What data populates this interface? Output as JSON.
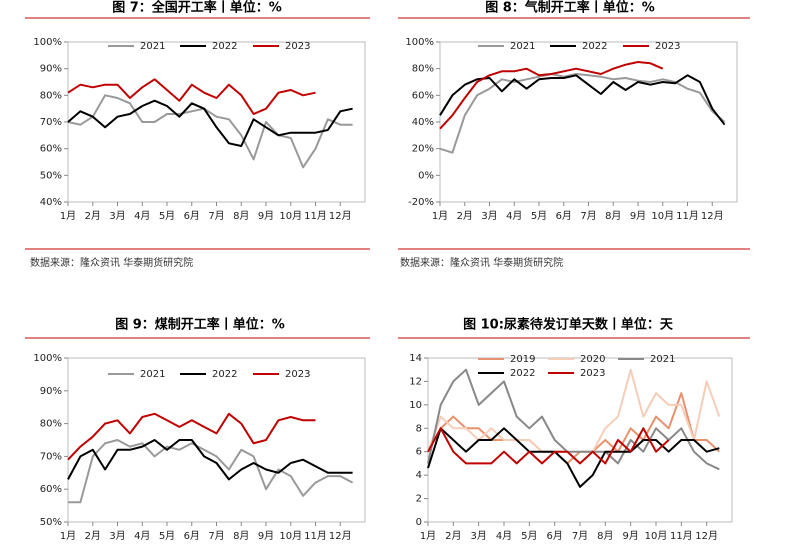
{
  "chart_data": [
    {
      "type": "line",
      "title": "图 7：全国开工率丨单位：%",
      "source": "数据来源：隆众资讯 华泰期货研究院",
      "x": [
        0,
        2,
        4,
        6,
        8,
        10,
        12,
        14,
        16,
        18,
        20,
        22,
        24,
        26,
        28,
        30,
        32,
        34,
        36,
        38,
        40,
        42,
        44,
        46
      ],
      "xlim": [
        0,
        48
      ],
      "xticks": [
        {
          "value": 0,
          "label": "1月"
        },
        {
          "value": 4,
          "label": "2月"
        },
        {
          "value": 8,
          "label": "3月"
        },
        {
          "value": 12,
          "label": "4月"
        },
        {
          "value": 16,
          "label": "5月"
        },
        {
          "value": 20,
          "label": "6月"
        },
        {
          "value": 24,
          "label": "7月"
        },
        {
          "value": 28,
          "label": "8月"
        },
        {
          "value": 32,
          "label": "9月"
        },
        {
          "value": 36,
          "label": "10月"
        },
        {
          "value": 40,
          "label": "11月"
        },
        {
          "value": 44,
          "label": "12月"
        }
      ],
      "ylim": [
        40,
        100
      ],
      "yticks": [
        {
          "value": 40,
          "label": "40%"
        },
        {
          "value": 50,
          "label": "50%"
        },
        {
          "value": 60,
          "label": "60%"
        },
        {
          "value": 70,
          "label": "70%"
        },
        {
          "value": 80,
          "label": "80%"
        },
        {
          "value": 90,
          "label": "90%"
        },
        {
          "value": 100,
          "label": "100%"
        }
      ],
      "series": [
        {
          "name": "2021",
          "color": "#999999",
          "values": [
            70,
            69,
            72,
            80,
            79,
            77,
            70,
            70,
            73,
            73,
            74,
            75,
            72,
            71,
            65,
            56,
            70,
            65,
            64,
            53,
            60,
            71,
            69,
            69
          ]
        },
        {
          "name": "2022",
          "color": "#000000",
          "values": [
            70,
            74,
            72,
            68,
            72,
            73,
            76,
            78,
            76,
            72,
            77,
            75,
            68,
            62,
            61,
            71,
            68,
            65,
            66,
            66,
            66,
            67,
            74,
            75
          ]
        },
        {
          "name": "2023",
          "color": "#c00000",
          "values": [
            81,
            84,
            83,
            84,
            84,
            79,
            83,
            86,
            82,
            78,
            84,
            81,
            79,
            84,
            80,
            73,
            75,
            81,
            82,
            80,
            81,
            null,
            null,
            null
          ]
        }
      ]
    },
    {
      "type": "line",
      "title": "图 8：气制开工率丨单位：%",
      "source": "数据来源：隆众资讯 华泰期货研究院",
      "x": [
        0,
        2,
        4,
        6,
        8,
        10,
        12,
        14,
        16,
        18,
        20,
        22,
        24,
        26,
        28,
        30,
        32,
        34,
        36,
        38,
        40,
        42,
        44,
        46
      ],
      "xlim": [
        0,
        48
      ],
      "xticks": [
        {
          "value": 0,
          "label": "1月"
        },
        {
          "value": 4,
          "label": "2月"
        },
        {
          "value": 8,
          "label": "3月"
        },
        {
          "value": 12,
          "label": "4月"
        },
        {
          "value": 16,
          "label": "5月"
        },
        {
          "value": 20,
          "label": "6月"
        },
        {
          "value": 24,
          "label": "7月"
        },
        {
          "value": 28,
          "label": "8月"
        },
        {
          "value": 32,
          "label": "9月"
        },
        {
          "value": 36,
          "label": "10月"
        },
        {
          "value": 40,
          "label": "11月"
        },
        {
          "value": 44,
          "label": "12月"
        }
      ],
      "ylim": [
        -20,
        100
      ],
      "yticks": [
        {
          "value": -20,
          "label": "-20%"
        },
        {
          "value": 0,
          "label": "0%"
        },
        {
          "value": 20,
          "label": "20%"
        },
        {
          "value": 40,
          "label": "40%"
        },
        {
          "value": 60,
          "label": "60%"
        },
        {
          "value": 80,
          "label": "80%"
        },
        {
          "value": 100,
          "label": "100%"
        }
      ],
      "series": [
        {
          "name": "2021",
          "color": "#999999",
          "values": [
            20,
            17,
            45,
            60,
            65,
            72,
            70,
            72,
            74,
            76,
            74,
            76,
            75,
            74,
            72,
            73,
            71,
            70,
            72,
            70,
            65,
            62,
            48,
            40
          ]
        },
        {
          "name": "2022",
          "color": "#000000",
          "values": [
            45,
            60,
            68,
            72,
            73,
            63,
            72,
            65,
            72,
            73,
            73,
            75,
            68,
            61,
            70,
            64,
            70,
            68,
            70,
            69,
            75,
            70,
            50,
            38
          ]
        },
        {
          "name": "2023",
          "color": "#c00000",
          "values": [
            35,
            45,
            58,
            70,
            75,
            78,
            78,
            80,
            75,
            76,
            78,
            80,
            78,
            76,
            80,
            83,
            85,
            84,
            80,
            null,
            null,
            null,
            null,
            null
          ]
        }
      ]
    },
    {
      "type": "line",
      "title": "图 9：煤制开工率丨单位：%",
      "x": [
        0,
        2,
        4,
        6,
        8,
        10,
        12,
        14,
        16,
        18,
        20,
        22,
        24,
        26,
        28,
        30,
        32,
        34,
        36,
        38,
        40,
        42,
        44,
        46
      ],
      "xlim": [
        0,
        48
      ],
      "xticks": [
        {
          "value": 0,
          "label": "1月"
        },
        {
          "value": 4,
          "label": "2月"
        },
        {
          "value": 8,
          "label": "3月"
        },
        {
          "value": 12,
          "label": "4月"
        },
        {
          "value": 16,
          "label": "5月"
        },
        {
          "value": 20,
          "label": "6月"
        },
        {
          "value": 24,
          "label": "7月"
        },
        {
          "value": 28,
          "label": "8月"
        },
        {
          "value": 32,
          "label": "9月"
        },
        {
          "value": 36,
          "label": "10月"
        },
        {
          "value": 40,
          "label": "11月"
        },
        {
          "value": 44,
          "label": "12月"
        }
      ],
      "ylim": [
        50,
        100
      ],
      "yticks": [
        {
          "value": 50,
          "label": "50%"
        },
        {
          "value": 60,
          "label": "60%"
        },
        {
          "value": 70,
          "label": "70%"
        },
        {
          "value": 80,
          "label": "80%"
        },
        {
          "value": 90,
          "label": "90%"
        },
        {
          "value": 100,
          "label": "100%"
        }
      ],
      "series": [
        {
          "name": "2021",
          "color": "#999999",
          "values": [
            56,
            56,
            70,
            74,
            75,
            73,
            74,
            70,
            73,
            72,
            74,
            72,
            70,
            66,
            72,
            70,
            60,
            66,
            64,
            58,
            62,
            64,
            64,
            62
          ]
        },
        {
          "name": "2022",
          "color": "#000000",
          "values": [
            63,
            70,
            72,
            66,
            72,
            72,
            73,
            75,
            72,
            75,
            75,
            70,
            68,
            63,
            66,
            68,
            66,
            65,
            68,
            69,
            67,
            65,
            65,
            65
          ]
        },
        {
          "name": "2023",
          "color": "#c00000",
          "values": [
            69,
            73,
            76,
            80,
            81,
            77,
            82,
            83,
            81,
            79,
            81,
            79,
            77,
            83,
            80,
            74,
            75,
            81,
            82,
            81,
            81,
            null,
            null,
            null
          ]
        }
      ]
    },
    {
      "type": "line",
      "title": "图 10:尿素待发订单天数丨单位：天",
      "x": [
        0,
        2,
        4,
        6,
        8,
        10,
        12,
        14,
        16,
        18,
        20,
        22,
        24,
        26,
        28,
        30,
        32,
        34,
        36,
        38,
        40,
        42,
        44,
        46
      ],
      "xlim": [
        0,
        48
      ],
      "xticks": [
        {
          "value": 0,
          "label": "1月"
        },
        {
          "value": 4,
          "label": "2月"
        },
        {
          "value": 8,
          "label": "3月"
        },
        {
          "value": 12,
          "label": "4月"
        },
        {
          "value": 16,
          "label": "5月"
        },
        {
          "value": 20,
          "label": "6月"
        },
        {
          "value": 24,
          "label": "7月"
        },
        {
          "value": 28,
          "label": "8月"
        },
        {
          "value": 32,
          "label": "9月"
        },
        {
          "value": 36,
          "label": "10月"
        },
        {
          "value": 40,
          "label": "11月"
        },
        {
          "value": 44,
          "label": "12月"
        }
      ],
      "ylim": [
        0,
        14
      ],
      "yticks": [
        0,
        2,
        4,
        6,
        8,
        10,
        12,
        14
      ],
      "series": [
        {
          "name": "2019",
          "color": "#e9906c",
          "values": [
            6,
            8,
            9,
            8,
            8,
            7,
            7,
            7,
            7,
            6,
            6,
            5,
            6,
            6,
            7,
            6,
            8,
            7,
            9,
            8,
            11,
            7,
            7,
            6
          ]
        },
        {
          "name": "2020",
          "color": "#f5cdb8",
          "values": [
            6,
            9,
            8,
            8,
            7,
            8,
            7,
            7,
            7,
            6,
            6,
            6,
            5,
            6,
            8,
            9,
            13,
            9,
            11,
            10,
            10,
            7,
            12,
            9
          ]
        },
        {
          "name": "2021",
          "color": "#888888",
          "values": [
            5,
            10,
            12,
            13,
            10,
            11,
            12,
            9,
            8,
            9,
            7,
            6,
            6,
            6,
            6,
            5,
            7,
            6,
            8,
            7,
            8,
            6,
            5,
            4.5
          ]
        },
        {
          "name": "2022",
          "color": "#000000",
          "values": [
            4.6,
            8,
            7,
            6,
            7,
            7,
            8,
            7,
            6,
            6,
            6,
            5,
            3,
            4,
            6,
            6,
            6,
            7,
            7,
            6,
            7,
            7,
            6,
            6.3
          ]
        },
        {
          "name": "2023",
          "color": "#c00000",
          "values": [
            6,
            8,
            6,
            5,
            5,
            5,
            6,
            5,
            6,
            5,
            6,
            6,
            5,
            6,
            5,
            7,
            6,
            8,
            6,
            7,
            null,
            null,
            null,
            null
          ]
        }
      ]
    }
  ]
}
